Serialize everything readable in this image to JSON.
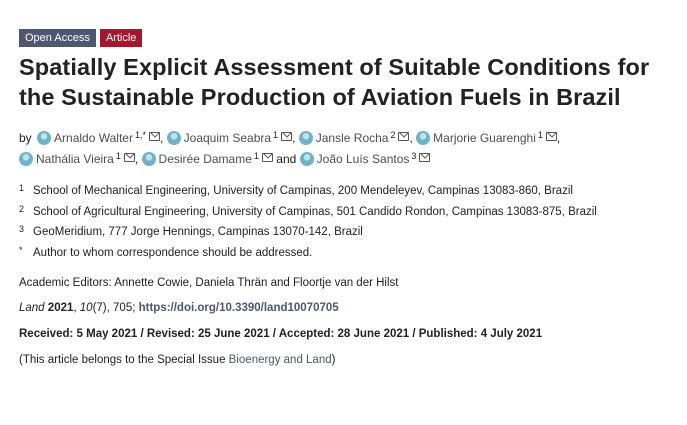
{
  "badges": {
    "open_access": "Open Access",
    "article": "Article"
  },
  "title": "Spatially Explicit Assessment of Suitable Conditions for the Sustainable Production of Aviation Fuels in Brazil",
  "authors": {
    "by": "by",
    "and": "and",
    "list": [
      {
        "name": "Arnaldo Walter",
        "sup": "1,*"
      },
      {
        "name": "Joaquim Seabra",
        "sup": "1"
      },
      {
        "name": "Jansle Rocha",
        "sup": "2"
      },
      {
        "name": "Marjorie Guarenghi",
        "sup": "1"
      },
      {
        "name": "Nathália Vieira",
        "sup": "1"
      },
      {
        "name": "Desirée Damame",
        "sup": "1"
      },
      {
        "name": "João Luís Santos",
        "sup": "3"
      }
    ]
  },
  "affiliations": [
    {
      "num": "1",
      "text": "School of Mechanical Engineering, University of Campinas, 200 Mendeleyev, Campinas 13083-860, Brazil"
    },
    {
      "num": "2",
      "text": "School of Agricultural Engineering, University of Campinas, 501 Candido Rondon, Campinas 13083-875, Brazil"
    },
    {
      "num": "3",
      "text": "GeoMeridium, 777 Jorge Hennings, Campinas 13070-142, Brazil"
    },
    {
      "num": "*",
      "text": "Author to whom correspondence should be addressed."
    }
  ],
  "editors": "Academic Editors: Annette Cowie, Daniela Thrän and Floortje van der Hilst",
  "citation": {
    "journal": "Land",
    "year": "2021",
    "volume": "10",
    "issue_pages": "(7), 705;",
    "doi": "https://doi.org/10.3390/land10070705"
  },
  "dates": "Received: 5 May 2021 / Revised: 25 June 2021 / Accepted: 28 June 2021 / Published: 4 July 2021",
  "special_issue": {
    "prefix": "(This article belongs to the Special Issue ",
    "link": "Bioenergy and Land",
    "suffix": ")"
  },
  "colors": {
    "open_access_badge": "#4f5671",
    "article_badge": "#a5162f",
    "link": "#4f5671"
  }
}
